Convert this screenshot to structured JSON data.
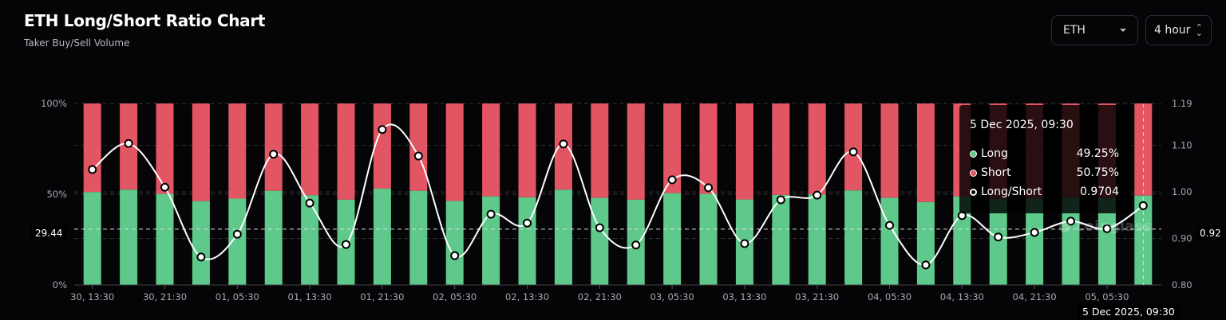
{
  "header": {
    "title": "ETH Long/Short Ratio Chart",
    "subtitle": "Taker Buy/Sell Volume"
  },
  "controls": {
    "symbol": "ETH",
    "interval": "4 hour"
  },
  "watermark": "coinglass",
  "colors": {
    "long": "#5ec98a",
    "short": "#e25563",
    "ratio_line": "#ffffff",
    "background": "#050508"
  },
  "crosshair": {
    "x_label": "5 Dec 2025, 09:30",
    "left_label": "29.44",
    "right_label": "0.92"
  },
  "tooltip": {
    "date": "5 Dec 2025, 09:30",
    "rows": [
      {
        "label": "Long",
        "value": "49.25%"
      },
      {
        "label": "Short",
        "value": "50.75%"
      },
      {
        "label": "Long/Short",
        "value": "0.9704"
      }
    ]
  },
  "chart_data": {
    "type": "bar",
    "stacked": true,
    "title": "ETH Long/Short Ratio Chart",
    "x": [
      "30, 13:30",
      "30, 17:30",
      "30, 21:30",
      "01, 01:30",
      "01, 05:30",
      "01, 09:30",
      "01, 13:30",
      "01, 17:30",
      "01, 21:30",
      "02, 01:30",
      "02, 05:30",
      "02, 09:30",
      "02, 13:30",
      "02, 17:30",
      "02, 21:30",
      "03, 01:30",
      "03, 05:30",
      "03, 09:30",
      "03, 13:30",
      "03, 17:30",
      "03, 21:30",
      "04, 01:30",
      "04, 05:30",
      "04, 09:30",
      "04, 13:30",
      "04, 17:30",
      "04, 21:30",
      "05, 01:30",
      "05, 05:30",
      "05, 09:30"
    ],
    "x_tick_labels": [
      "30, 13:30",
      "30, 21:30",
      "01, 05:30",
      "01, 13:30",
      "01, 21:30",
      "02, 05:30",
      "02, 13:30",
      "02, 21:30",
      "03, 05:30",
      "03, 13:30",
      "03, 21:30",
      "04, 05:30",
      "04, 13:30",
      "04, 21:30",
      "05, 05:30"
    ],
    "series": [
      {
        "name": "Long",
        "axis": "left",
        "values": [
          51.2,
          52.5,
          50.2,
          46.2,
          47.6,
          51.9,
          49.4,
          47.0,
          53.1,
          51.9,
          46.3,
          48.8,
          48.3,
          52.5,
          48.0,
          47.0,
          50.6,
          50.2,
          47.1,
          49.6,
          49.8,
          52.1,
          48.1,
          45.7,
          48.7,
          47.5,
          47.7,
          48.4,
          47.9,
          49.25
        ]
      },
      {
        "name": "Short",
        "axis": "left",
        "values": [
          48.8,
          47.5,
          49.8,
          53.8,
          52.4,
          48.1,
          50.6,
          53.0,
          46.9,
          48.1,
          53.7,
          51.2,
          51.7,
          47.5,
          52.0,
          53.0,
          49.4,
          49.8,
          52.9,
          50.4,
          50.2,
          47.9,
          51.9,
          54.3,
          51.3,
          52.5,
          52.3,
          51.6,
          52.1,
          50.75
        ]
      },
      {
        "name": "Long/Short",
        "type": "line",
        "axis": "right",
        "values": [
          1.048,
          1.104,
          1.01,
          0.86,
          0.909,
          1.081,
          0.976,
          0.887,
          1.134,
          1.077,
          0.863,
          0.952,
          0.933,
          1.103,
          0.923,
          0.886,
          1.026,
          1.009,
          0.889,
          0.983,
          0.993,
          1.086,
          0.928,
          0.843,
          0.949,
          0.903,
          0.913,
          0.937,
          0.921,
          0.9704
        ]
      }
    ],
    "y_left": {
      "ticks": [
        "0%",
        "50%",
        "100%"
      ],
      "range": [
        0,
        100
      ]
    },
    "y_right": {
      "ticks": [
        "0.80",
        "0.90",
        "1.00",
        "1.10",
        "1.19"
      ],
      "range": [
        0.8,
        1.19
      ]
    },
    "grid": true,
    "legend": "none"
  }
}
